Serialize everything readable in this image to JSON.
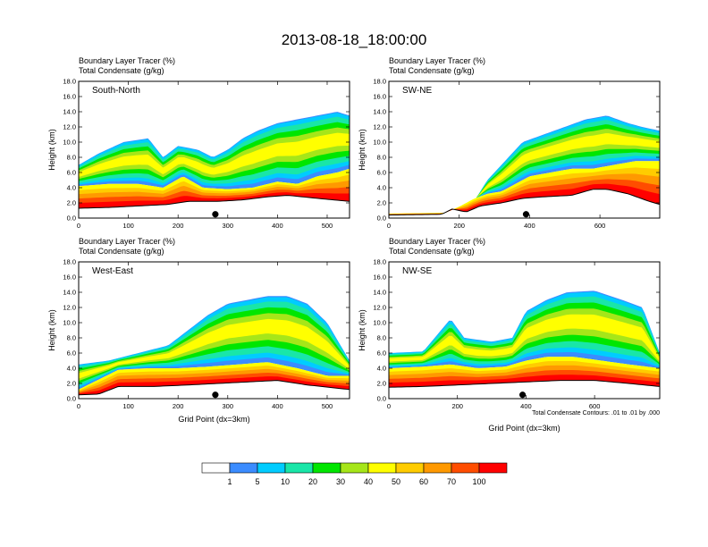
{
  "figure": {
    "title": "2013-08-18_18:00:00",
    "note": "Total Condensate Contours: .01 to .01 by .000"
  },
  "colorbar": {
    "labels": [
      "1",
      "5",
      "10",
      "20",
      "30",
      "40",
      "50",
      "60",
      "70",
      "100"
    ],
    "colors": [
      "#ffffff",
      "#3b8cff",
      "#00ccff",
      "#19e6a8",
      "#00e600",
      "#a6e619",
      "#ffff00",
      "#ffcc00",
      "#ff9900",
      "#ff4d00",
      "#ff0000"
    ]
  },
  "chart_data": [
    {
      "type": "heatmap",
      "panel": "South-North",
      "subtitle_left": "Boundary Layer Tracer",
      "subtitle_unit": "(%)",
      "subtitle2_left": "Total Condensate",
      "subtitle2_unit": "(g/kg)",
      "ylabel": "Height (km)",
      "xlabel": "",
      "xlim": [
        0,
        545
      ],
      "ylim": [
        0,
        18
      ],
      "xticks": [
        "0",
        "100",
        "200",
        "300",
        "400",
        "500"
      ],
      "yticks": [
        "0.0",
        "2.0",
        "4.0",
        "6.0",
        "8.0",
        "10.0",
        "12.0",
        "14.0",
        "16.0",
        "18.0"
      ],
      "marker_x": 275,
      "terrain": [
        [
          0,
          1.3
        ],
        [
          60,
          1.4
        ],
        [
          120,
          1.6
        ],
        [
          180,
          1.8
        ],
        [
          220,
          2.2
        ],
        [
          280,
          2.2
        ],
        [
          330,
          2.4
        ],
        [
          380,
          2.8
        ],
        [
          420,
          3.0
        ],
        [
          480,
          2.6
        ],
        [
          545,
          2.2
        ]
      ],
      "cloud_top": [
        [
          0,
          7.0
        ],
        [
          40,
          8.5
        ],
        [
          90,
          10.0
        ],
        [
          140,
          10.5
        ],
        [
          170,
          8.0
        ],
        [
          200,
          9.5
        ],
        [
          240,
          9.0
        ],
        [
          270,
          8.0
        ],
        [
          300,
          9.0
        ],
        [
          330,
          10.5
        ],
        [
          360,
          11.5
        ],
        [
          400,
          12.5
        ],
        [
          440,
          13.0
        ],
        [
          480,
          13.5
        ],
        [
          520,
          14.0
        ],
        [
          545,
          13.5
        ]
      ],
      "bl_top": [
        [
          0,
          4.2
        ],
        [
          60,
          4.5
        ],
        [
          120,
          4.5
        ],
        [
          170,
          4.0
        ],
        [
          210,
          5.5
        ],
        [
          250,
          4.0
        ],
        [
          300,
          3.8
        ],
        [
          350,
          4.0
        ],
        [
          400,
          4.8
        ],
        [
          440,
          4.5
        ],
        [
          480,
          5.5
        ],
        [
          520,
          6.0
        ],
        [
          545,
          6.5
        ]
      ]
    },
    {
      "type": "heatmap",
      "panel": "SW-NE",
      "subtitle_left": "Boundary Layer Tracer",
      "subtitle_unit": "(%)",
      "subtitle2_left": "Total Condensate",
      "subtitle2_unit": "(g/kg)",
      "ylabel": "Height (km)",
      "xlabel": "",
      "xlim": [
        0,
        770
      ],
      "ylim": [
        0,
        18
      ],
      "xticks": [
        "0",
        "200",
        "400",
        "600"
      ],
      "yticks": [
        "0.0",
        "2.0",
        "4.0",
        "6.0",
        "8.0",
        "10.0",
        "12.0",
        "14.0",
        "16.0",
        "18.0"
      ],
      "marker_x": 390,
      "terrain": [
        [
          0,
          0.4
        ],
        [
          150,
          0.5
        ],
        [
          180,
          1.2
        ],
        [
          220,
          0.8
        ],
        [
          260,
          1.6
        ],
        [
          320,
          2.0
        ],
        [
          380,
          2.6
        ],
        [
          440,
          2.8
        ],
        [
          520,
          3.0
        ],
        [
          580,
          3.8
        ],
        [
          620,
          3.8
        ],
        [
          680,
          3.2
        ],
        [
          740,
          2.2
        ],
        [
          770,
          1.8
        ]
      ],
      "cloud_top": [
        [
          0,
          0
        ],
        [
          200,
          0
        ],
        [
          240,
          2.0
        ],
        [
          280,
          5.0
        ],
        [
          320,
          7.0
        ],
        [
          380,
          10.0
        ],
        [
          440,
          11.0
        ],
        [
          500,
          12.0
        ],
        [
          560,
          13.0
        ],
        [
          620,
          13.5
        ],
        [
          680,
          12.5
        ],
        [
          720,
          12.0
        ],
        [
          770,
          11.5
        ]
      ],
      "bl_top": [
        [
          0,
          0.6
        ],
        [
          160,
          0.7
        ],
        [
          200,
          1.5
        ],
        [
          240,
          2.5
        ],
        [
          280,
          3.2
        ],
        [
          320,
          3.5
        ],
        [
          360,
          4.5
        ],
        [
          400,
          5.5
        ],
        [
          460,
          6.0
        ],
        [
          520,
          6.5
        ],
        [
          580,
          6.5
        ],
        [
          640,
          7.0
        ],
        [
          700,
          7.5
        ],
        [
          770,
          7.5
        ]
      ]
    },
    {
      "type": "heatmap",
      "panel": "West-East",
      "subtitle_left": "Boundary Layer Tracer",
      "subtitle_unit": "(%)",
      "subtitle2_left": "Total Condensate",
      "subtitle2_unit": "(g/kg)",
      "ylabel": "Height (km)",
      "xlabel": "Grid Point (dx=3km)",
      "xlim": [
        0,
        545
      ],
      "ylim": [
        0,
        18
      ],
      "xticks": [
        "0",
        "100",
        "200",
        "300",
        "400",
        "500"
      ],
      "yticks": [
        "0.0",
        "2.0",
        "4.0",
        "6.0",
        "8.0",
        "10.0",
        "12.0",
        "14.0",
        "16.0",
        "18.0"
      ],
      "marker_x": 275,
      "terrain": [
        [
          0,
          0.5
        ],
        [
          40,
          0.6
        ],
        [
          80,
          1.6
        ],
        [
          150,
          1.6
        ],
        [
          220,
          1.8
        ],
        [
          280,
          2.0
        ],
        [
          340,
          2.2
        ],
        [
          400,
          2.4
        ],
        [
          460,
          1.8
        ],
        [
          545,
          1.2
        ]
      ],
      "cloud_top": [
        [
          0,
          4.5
        ],
        [
          60,
          5.0
        ],
        [
          120,
          6.0
        ],
        [
          180,
          7.0
        ],
        [
          220,
          9.0
        ],
        [
          260,
          11.0
        ],
        [
          300,
          12.5
        ],
        [
          340,
          13.0
        ],
        [
          380,
          13.5
        ],
        [
          420,
          13.5
        ],
        [
          460,
          12.5
        ],
        [
          500,
          10.0
        ],
        [
          545,
          5.0
        ]
      ],
      "bl_top": [
        [
          0,
          1.2
        ],
        [
          40,
          2.5
        ],
        [
          80,
          3.8
        ],
        [
          140,
          4.0
        ],
        [
          200,
          4.0
        ],
        [
          260,
          4.2
        ],
        [
          320,
          4.5
        ],
        [
          380,
          4.8
        ],
        [
          440,
          4.0
        ],
        [
          500,
          3.0
        ],
        [
          545,
          3.0
        ]
      ]
    },
    {
      "type": "heatmap",
      "panel": "NW-SE",
      "subtitle_left": "Boundary Layer Tracer",
      "subtitle_unit": "(%)",
      "subtitle2_left": "Total Condensate",
      "subtitle2_unit": "(g/kg)",
      "ylabel": "Height (km)",
      "xlabel": "Grid Point (dx=3km)",
      "xlim": [
        0,
        790
      ],
      "ylim": [
        0,
        18
      ],
      "xticks": [
        "0",
        "200",
        "400",
        "600"
      ],
      "yticks": [
        "0.0",
        "2.0",
        "4.0",
        "6.0",
        "8.0",
        "10.0",
        "12.0",
        "14.0",
        "16.0",
        "18.0"
      ],
      "marker_x": 390,
      "terrain": [
        [
          0,
          1.5
        ],
        [
          100,
          1.6
        ],
        [
          200,
          1.8
        ],
        [
          300,
          2.0
        ],
        [
          400,
          2.2
        ],
        [
          500,
          2.4
        ],
        [
          600,
          2.4
        ],
        [
          700,
          2.0
        ],
        [
          790,
          1.6
        ]
      ],
      "cloud_top": [
        [
          0,
          6.0
        ],
        [
          100,
          6.2
        ],
        [
          180,
          10.5
        ],
        [
          220,
          8.0
        ],
        [
          300,
          7.5
        ],
        [
          360,
          8.0
        ],
        [
          400,
          11.5
        ],
        [
          460,
          13.0
        ],
        [
          520,
          14.0
        ],
        [
          600,
          14.2
        ],
        [
          680,
          13.0
        ],
        [
          740,
          12.0
        ],
        [
          790,
          6.0
        ]
      ],
      "bl_top": [
        [
          0,
          4.0
        ],
        [
          100,
          4.2
        ],
        [
          180,
          4.5
        ],
        [
          260,
          4.0
        ],
        [
          340,
          4.2
        ],
        [
          400,
          5.0
        ],
        [
          460,
          5.5
        ],
        [
          540,
          5.5
        ],
        [
          620,
          5.0
        ],
        [
          700,
          4.5
        ],
        [
          790,
          4.0
        ]
      ]
    }
  ]
}
